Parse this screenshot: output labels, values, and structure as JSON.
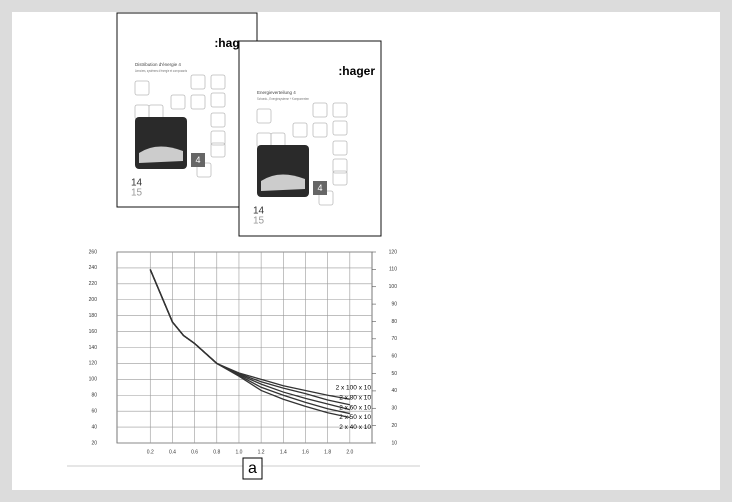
{
  "covers": [
    {
      "brand": ":hager",
      "title": "Distribution d'énergie 4",
      "subtitle": "Armoires, systèmes d'énergie et composants",
      "badge": "4",
      "year_top": "14",
      "year_bottom": "15"
    },
    {
      "brand": ":hager",
      "title": "Energieverteilung 4",
      "subtitle": "Schrank-, Energiesysteme + Komponenten",
      "badge": "4",
      "year_top": "14",
      "year_bottom": "15"
    }
  ],
  "chart_data": {
    "type": "line",
    "grid": true,
    "x": [
      0.2,
      0.4,
      0.5,
      0.6,
      0.8,
      1.0,
      1.2,
      1.4,
      1.6,
      1.8,
      2.0
    ],
    "series": [
      {
        "name": "2 x 100 x 10",
        "color": "#333333",
        "values": [
          238,
          172,
          155,
          145,
          120,
          108,
          100,
          92,
          86,
          80,
          75
        ]
      },
      {
        "name": "2 x 80 x 10",
        "color": "#333333",
        "values": [
          238,
          172,
          155,
          145,
          120,
          107,
          97,
          89,
          82,
          74,
          68
        ]
      },
      {
        "name": "2 x 60 x 10",
        "color": "#333333",
        "values": [
          238,
          172,
          155,
          145,
          120,
          106,
          94,
          84,
          76,
          69,
          62
        ]
      },
      {
        "name": "2 x 50 x 10",
        "color": "#333333",
        "values": [
          238,
          172,
          155,
          145,
          120,
          105,
          90,
          80,
          71,
          63,
          57
        ]
      },
      {
        "name": "2 x 40 x 10",
        "color": "#333333",
        "values": [
          238,
          172,
          155,
          145,
          120,
          104,
          86,
          75,
          66,
          58,
          52
        ]
      }
    ],
    "xlim": [
      -0.1,
      2.2
    ],
    "xticks": [
      0.2,
      0.4,
      0.6,
      0.8,
      {
        "value": 1,
        "label": "1.0"
      },
      1.2,
      1.4,
      1.6,
      1.8,
      {
        "value": 2,
        "label": "2.0"
      }
    ],
    "ylim": [
      20,
      260
    ],
    "yticks": [
      20,
      40,
      60,
      80,
      100,
      120,
      140,
      160,
      180,
      200,
      220,
      240,
      260
    ],
    "y2lim": [
      10,
      120
    ],
    "y2ticks": [
      10,
      20,
      30,
      40,
      50,
      60,
      70,
      80,
      90,
      100,
      110,
      120
    ]
  },
  "caption": "a"
}
